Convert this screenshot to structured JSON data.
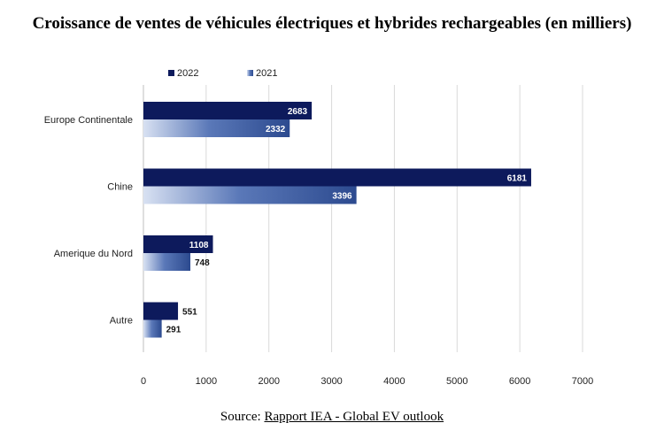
{
  "title": "Croissance de ventes de véhicules électriques et hybrides rechargeables (en milliers)",
  "source": {
    "prefix": "Source: ",
    "link": "Rapport IEA - Global EV outlook"
  },
  "colors": {
    "s2022": "#0d1a5c",
    "s2021_dark": "#2c4a8f",
    "s2021_light": "#d8e1f2",
    "grid": "#d9d9d9"
  },
  "chart_data": {
    "type": "bar",
    "orientation": "horizontal",
    "categories": [
      "Europe Continentale",
      "Chine",
      "Amerique du Nord",
      "Autre"
    ],
    "series": [
      {
        "name": "2022",
        "values": [
          2683,
          6181,
          1108,
          551
        ]
      },
      {
        "name": "2021",
        "values": [
          2332,
          3396,
          748,
          291
        ]
      }
    ],
    "xlim": [
      0,
      7000
    ],
    "xticks": [
      0,
      1000,
      2000,
      3000,
      4000,
      5000,
      6000,
      7000
    ],
    "grid": true,
    "legend": "top-left"
  }
}
